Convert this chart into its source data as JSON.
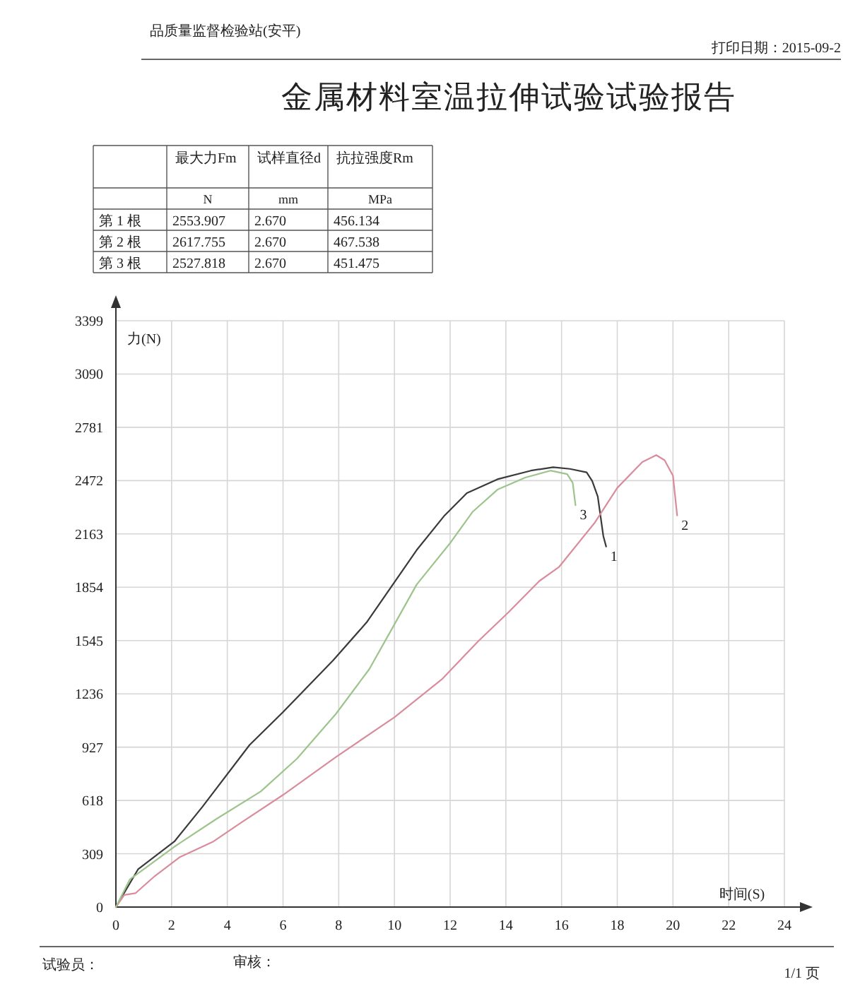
{
  "chart_data": {
    "type": "line",
    "title": "金属材料室温拉伸试验试验报告",
    "xlabel": "时间(S)",
    "ylabel": "力(N)",
    "xlim": [
      0,
      24
    ],
    "xticks": [
      0,
      2,
      4,
      6,
      8,
      10,
      12,
      14,
      16,
      18,
      20,
      22,
      24
    ],
    "ylim": [
      0,
      3399
    ],
    "yticks": [
      0,
      309,
      618,
      927,
      1236,
      1545,
      1854,
      2163,
      2472,
      2781,
      3090,
      3399
    ],
    "grid": true,
    "series": [
      {
        "name": "1",
        "color": "#3a3a3a",
        "x": [
          0,
          0.8,
          2.1,
          3.1,
          4.8,
          6,
          7.8,
          9,
          10.8,
          11.8,
          12.6,
          13.7,
          14.9,
          15.7,
          16.3,
          16.9,
          17.1,
          17.3,
          17.5,
          17.6
        ],
        "values": [
          0,
          220,
          380,
          580,
          940,
          1130,
          1430,
          1650,
          2070,
          2270,
          2400,
          2480,
          2530,
          2550,
          2540,
          2520,
          2470,
          2380,
          2150,
          2090
        ]
      },
      {
        "name": "2",
        "color": "#d98c9c",
        "x": [
          0,
          0.3,
          0.7,
          1.4,
          2.3,
          3.5,
          4.5,
          6,
          7.9,
          10,
          11.7,
          13,
          14.1,
          15.2,
          15.9,
          17.2,
          18,
          18.9,
          19.4,
          19.7,
          20,
          20.15
        ],
        "values": [
          0,
          70,
          80,
          180,
          290,
          380,
          490,
          650,
          870,
          1100,
          1320,
          1540,
          1710,
          1890,
          1970,
          2230,
          2430,
          2580,
          2620,
          2590,
          2500,
          2270
        ]
      },
      {
        "name": "3",
        "color": "#9cc48c",
        "x": [
          0,
          0.5,
          2.1,
          3.6,
          5.2,
          6.5,
          7.9,
          9.1,
          9.9,
          10.8,
          12,
          12.8,
          13.7,
          14.7,
          15.6,
          16.2,
          16.4,
          16.5
        ],
        "values": [
          0,
          160,
          350,
          510,
          670,
          860,
          1120,
          1380,
          1610,
          1870,
          2110,
          2290,
          2420,
          2490,
          2530,
          2510,
          2460,
          2330
        ]
      }
    ],
    "annotations": [
      "品质量监督检验站(安平)",
      "打印日期：2015-09-2",
      "试验员：",
      "审核：",
      "1/1 页",
      "最大力Fm",
      "试样直径d",
      "抗拉强度Rm",
      "N",
      "mm",
      "MPa",
      "第 1 根",
      "2553.907",
      "2.670",
      "456.134",
      "第 2 根",
      "2617.755",
      "2.670",
      "467.538",
      "第 3 根",
      "2527.818",
      "2.670",
      "451.475"
    ]
  }
}
